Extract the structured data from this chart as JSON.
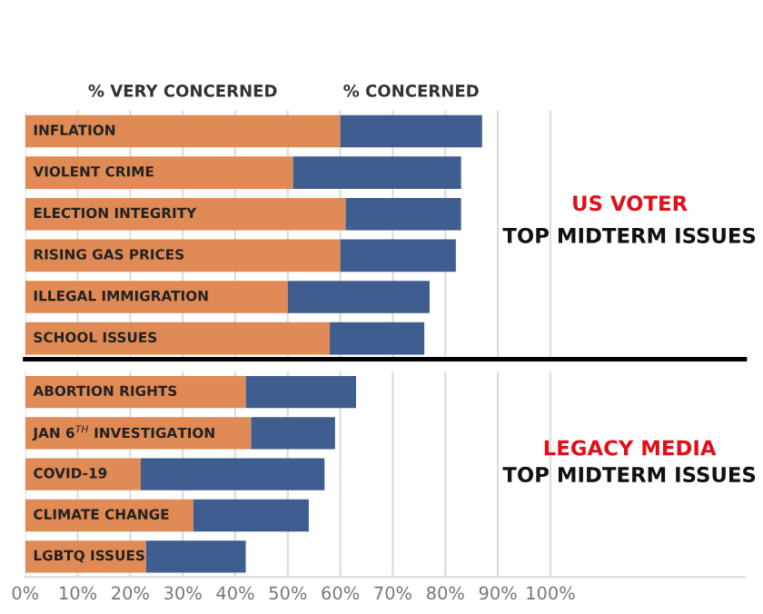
{
  "chart_data": [
    {
      "type": "bar",
      "orientation": "horizontal",
      "stacked": true,
      "categories": [
        "INFLATION",
        "VIOLENT CRIME",
        "ELECTION INTEGRITY",
        "RISING GAS PRICES",
        "ILLEGAL IMMIGRATION",
        "SCHOOL ISSUES"
      ],
      "series": [
        {
          "name": "% VERY CONCERNED",
          "color": "#e08a55",
          "values": [
            60,
            51,
            61,
            60,
            50,
            58
          ]
        },
        {
          "name": "% CONCERNED",
          "color": "#3f5d8f",
          "values": [
            27,
            32,
            22,
            22,
            27,
            18
          ]
        }
      ],
      "xlim": [
        0,
        137
      ],
      "xticks": [
        0,
        10,
        20,
        30,
        40,
        50,
        60,
        70,
        80,
        90,
        100
      ],
      "grid": "x",
      "tick_labels": false,
      "annotations": [
        "US VOTER",
        "TOP MIDTERM ISSUES"
      ]
    },
    {
      "type": "bar",
      "orientation": "horizontal",
      "stacked": true,
      "categories": [
        "ABORTION RIGHTS",
        "JAN 6$^{TH}$ INVESTIGATION",
        "COVID-19",
        "CLIMATE CHANGE",
        "LGBTQ ISSUES"
      ],
      "series": [
        {
          "color": "#e08a55",
          "values": [
            42,
            43,
            22,
            32,
            23
          ]
        },
        {
          "color": "#3f5d8f",
          "values": [
            21,
            16,
            35,
            22,
            19
          ]
        }
      ],
      "xlim": [
        0,
        137
      ],
      "xticks": [
        {
          "value": 0,
          "label": "0%"
        },
        {
          "value": 10,
          "label": "10%"
        },
        {
          "value": 20,
          "label": "20%"
        },
        {
          "value": 30,
          "label": "30%"
        },
        {
          "value": 40,
          "label": "40%"
        },
        {
          "value": 50,
          "label": "50%"
        },
        {
          "value": 60,
          "label": "60%"
        },
        {
          "value": 70,
          "label": "70%"
        },
        {
          "value": 80,
          "label": "80%"
        },
        {
          "value": 90,
          "label": "90%"
        },
        {
          "value": 100,
          "label": "100%"
        }
      ],
      "grid": "x",
      "tick_labels": "x",
      "annotations": [
        "LEGACY MEDIA",
        "TOP MIDTERM ISSUES"
      ]
    }
  ]
}
